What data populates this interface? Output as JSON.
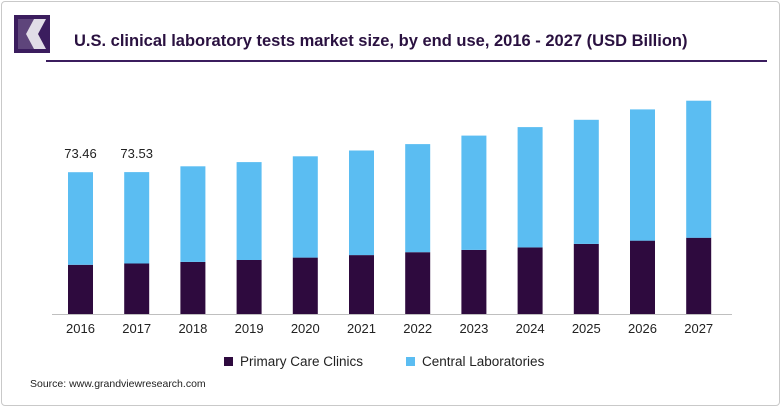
{
  "title": "U.S. clinical laboratory tests market size, by end use, 2016 - 2027 (USD Billion)",
  "source": "Source: www.grandviewresearch.com",
  "colors": {
    "primary_care": "#2e0a3e",
    "central_labs": "#5bbdf2",
    "title": "#2a1140",
    "logo": "#3b1d5e"
  },
  "legend": {
    "primary_care_label": "Primary Care Clinics",
    "central_labs_label": "Central Laboratories"
  },
  "chart_data": {
    "type": "bar",
    "stacked": true,
    "categories": [
      "2016",
      "2017",
      "2018",
      "2019",
      "2020",
      "2021",
      "2022",
      "2023",
      "2024",
      "2025",
      "2026",
      "2027"
    ],
    "series": [
      {
        "name": "Primary Care Clinics",
        "values": [
          25.5,
          26.2,
          27.0,
          28.0,
          29.2,
          30.5,
          32.0,
          33.2,
          34.5,
          36.3,
          38.0,
          39.5
        ]
      },
      {
        "name": "Central Laboratories",
        "values": [
          47.96,
          47.33,
          49.5,
          50.7,
          52.5,
          54.2,
          56.0,
          59.2,
          62.3,
          64.3,
          68.0,
          71.0
        ]
      }
    ],
    "data_labels": [
      {
        "category": "2016",
        "text": "73.46"
      },
      {
        "category": "2017",
        "text": "73.53"
      }
    ],
    "ylim": [
      0,
      115
    ],
    "grid": false,
    "legend_position": "bottom"
  }
}
